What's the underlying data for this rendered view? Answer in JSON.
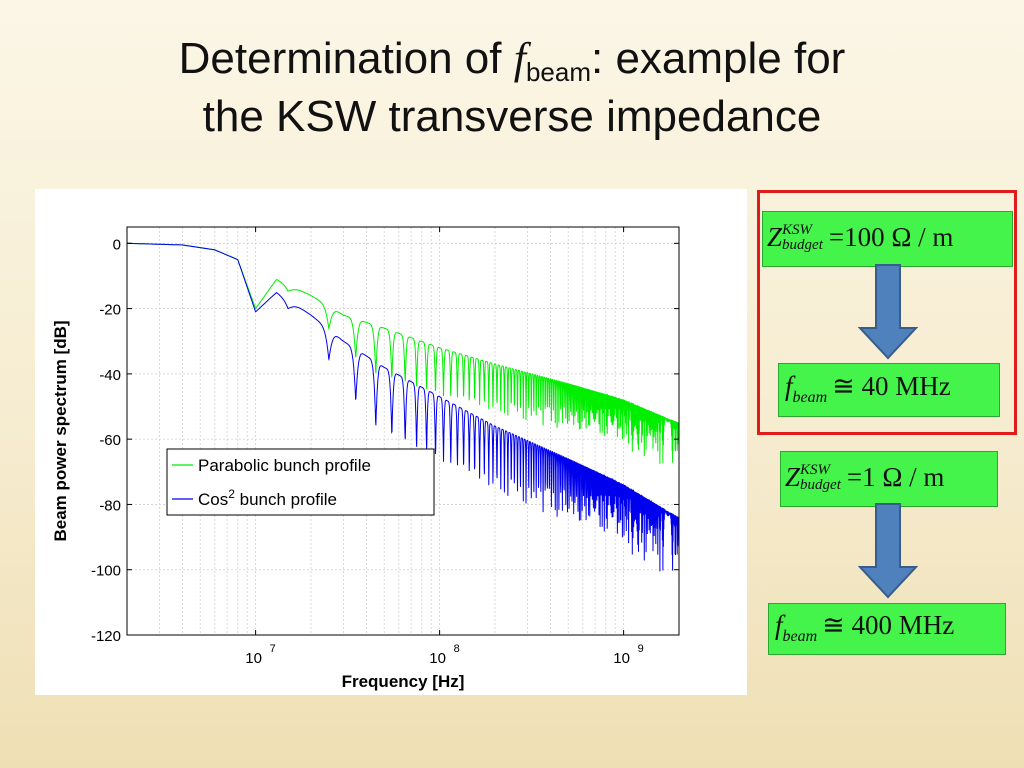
{
  "title": {
    "prefix": "Determination of ",
    "symbol": "f",
    "subscript": "beam",
    "suffix": ": example for",
    "line2": "the KSW transverse impedance"
  },
  "formulas": [
    {
      "lhs_symbol": "Z",
      "superscript": "KSW",
      "subscript": "budget",
      "rhs": "=100 Ω / m"
    },
    {
      "lhs_symbol": "f",
      "subscript": "beam",
      "rhs": "≅ 40 MHz"
    },
    {
      "lhs_symbol": "Z",
      "superscript": "KSW",
      "subscript": "budget",
      "rhs": "=1 Ω / m"
    },
    {
      "lhs_symbol": "f",
      "subscript": "beam",
      "rhs": "≅ 400 MHz"
    }
  ],
  "colors": {
    "highlight_box": "#e01b1b",
    "formula_bg": "#44f44a",
    "arrow": "#4f81bd"
  },
  "icons": [
    "down-arrow-icon",
    "down-arrow-icon"
  ],
  "chart_data": {
    "type": "line",
    "xlabel": "Frequency [Hz]",
    "ylabel": "Beam power spectrum [dB]",
    "x_scale": "log",
    "xlim": [
      2000000,
      2000000000
    ],
    "ylim": [
      -120,
      5
    ],
    "x_ticks": [
      {
        "base": "10",
        "exp": "7",
        "value": 10000000
      },
      {
        "base": "10",
        "exp": "8",
        "value": 100000000
      },
      {
        "base": "10",
        "exp": "9",
        "value": 1000000000
      }
    ],
    "y_ticks": [
      "0",
      "-20",
      "-40",
      "-60",
      "-80",
      "-100",
      "-120"
    ],
    "y_tick_values": [
      0,
      -20,
      -40,
      -60,
      -80,
      -100,
      -120
    ],
    "grid": true,
    "legend_position": "lower-left",
    "series": [
      {
        "name": "Parabolic bunch profile",
        "color": "#00ee00",
        "envelope": {
          "x": [
            2000000,
            4000000,
            6000000,
            8000000,
            10000000,
            13000000,
            20000000,
            30000000,
            50000000,
            100000000,
            200000000,
            500000000,
            1000000000,
            2000000000
          ],
          "y": [
            0,
            -0.5,
            -2,
            -5,
            -20,
            -11,
            -16,
            -22,
            -26,
            -32,
            -37,
            -43,
            -48,
            -55
          ]
        },
        "notch_depth_db": 15
      },
      {
        "name": "Cos² bunch profile",
        "legend_base": "Cos",
        "legend_sup": "2",
        "legend_rest": " bunch profile",
        "color": "#0000ee",
        "envelope": {
          "x": [
            2000000,
            4000000,
            6000000,
            8000000,
            10000000,
            13000000,
            20000000,
            30000000,
            50000000,
            100000000,
            200000000,
            500000000,
            1000000000,
            2000000000
          ],
          "y": [
            0,
            -0.5,
            -2,
            -5,
            -21,
            -15,
            -22,
            -30,
            -38,
            -47,
            -56,
            -66,
            -74,
            -84
          ]
        },
        "notch_depth_db": 20
      }
    ]
  }
}
